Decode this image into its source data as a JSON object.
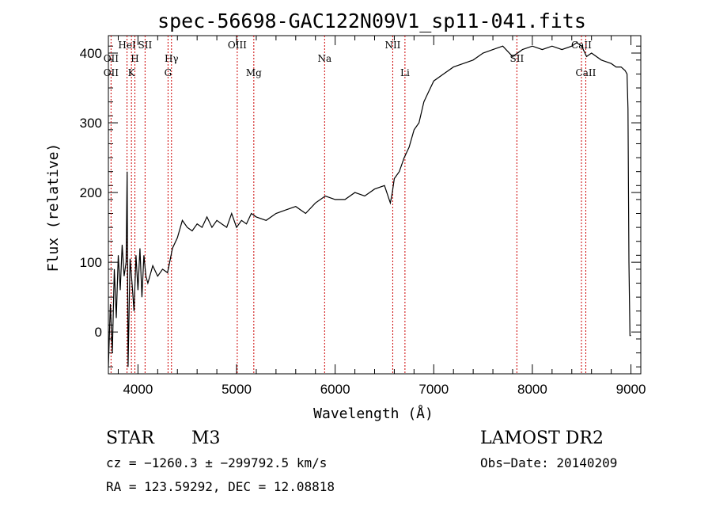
{
  "chart_data": {
    "type": "line",
    "title": "spec-56698-GAC122N09V1_sp11-041.fits",
    "xlabel": "Wavelength (Å)",
    "ylabel": "Flux (relative)",
    "xlim": [
      3700,
      9100
    ],
    "ylim": [
      -60,
      425
    ],
    "xticks": [
      4000,
      5000,
      6000,
      7000,
      8000,
      9000
    ],
    "yticks": [
      0,
      100,
      200,
      300,
      400
    ],
    "line_color": "#000000",
    "marker_color": "#cc0000",
    "series": [
      {
        "x": [
          3700,
          3720,
          3740,
          3760,
          3780,
          3800,
          3820,
          3840,
          3860,
          3880,
          3890,
          3900,
          3920,
          3940,
          3960,
          3980,
          4000,
          4020,
          4040,
          4060,
          4080,
          4100,
          4150,
          4200,
          4250,
          4300,
          4350,
          4400,
          4450,
          4500,
          4550,
          4600,
          4650,
          4700,
          4750,
          4800,
          4850,
          4900,
          4950,
          5000,
          5050,
          5100,
          5150,
          5200,
          5300,
          5400,
          5500,
          5600,
          5700,
          5800,
          5900,
          6000,
          6100,
          6200,
          6300,
          6400,
          6500,
          6560,
          6580,
          6600,
          6650,
          6700,
          6750,
          6800,
          6850,
          6900,
          6950,
          7000,
          7100,
          7200,
          7300,
          7400,
          7500,
          7600,
          7700,
          7800,
          7900,
          8000,
          8100,
          8200,
          8300,
          8400,
          8450,
          8500,
          8550,
          8600,
          8700,
          8800,
          8850,
          8900,
          8940,
          8960,
          8970,
          8980,
          8990,
          9000
        ],
        "y": [
          -50,
          40,
          -30,
          90,
          20,
          110,
          60,
          125,
          80,
          100,
          230,
          -50,
          105,
          70,
          30,
          110,
          60,
          120,
          50,
          110,
          80,
          70,
          95,
          80,
          90,
          85,
          120,
          135,
          160,
          150,
          145,
          155,
          150,
          165,
          150,
          160,
          155,
          150,
          170,
          150,
          160,
          155,
          170,
          165,
          160,
          170,
          175,
          180,
          170,
          185,
          195,
          190,
          190,
          200,
          195,
          205,
          210,
          185,
          200,
          220,
          230,
          250,
          265,
          290,
          300,
          330,
          345,
          360,
          370,
          380,
          385,
          390,
          400,
          405,
          410,
          395,
          405,
          410,
          405,
          410,
          405,
          410,
          415,
          410,
          395,
          400,
          390,
          385,
          380,
          380,
          375,
          370,
          320,
          100,
          -5,
          -5
        ]
      }
    ],
    "lines": [
      {
        "label": "OII",
        "x": 3727,
        "row": 2
      },
      {
        "label": "OII",
        "x": 3727,
        "row": 3
      },
      {
        "label": "HeI",
        "x": 3889,
        "row": 1
      },
      {
        "label": "H",
        "x": 3969,
        "row": 2
      },
      {
        "label": "K",
        "x": 3934,
        "row": 3
      },
      {
        "label": "SII",
        "x": 4072,
        "row": 1
      },
      {
        "label": "Hγ",
        "x": 4340,
        "row": 2
      },
      {
        "label": "G",
        "x": 4305,
        "row": 3
      },
      {
        "label": "OIII",
        "x": 5007,
        "row": 1
      },
      {
        "label": "Mg",
        "x": 5175,
        "row": 3
      },
      {
        "label": "Na",
        "x": 5893,
        "row": 2
      },
      {
        "label": "NII",
        "x": 6584,
        "row": 1
      },
      {
        "label": "Li",
        "x": 6708,
        "row": 3
      },
      {
        "label": "SII",
        "x": 7843,
        "row": 2
      },
      {
        "label": "CaII",
        "x": 8498,
        "row": 1
      },
      {
        "label": "CaII",
        "x": 8542,
        "row": 3
      }
    ]
  },
  "info": {
    "class": "STAR",
    "subclass": "M3",
    "survey": "LAMOST DR2",
    "cz": "cz = −1260.3 ± −299792.5 km/s",
    "obsdate": "Obs−Date: 20140209",
    "radec": "RA = 123.59292, DEC =  12.08818"
  }
}
